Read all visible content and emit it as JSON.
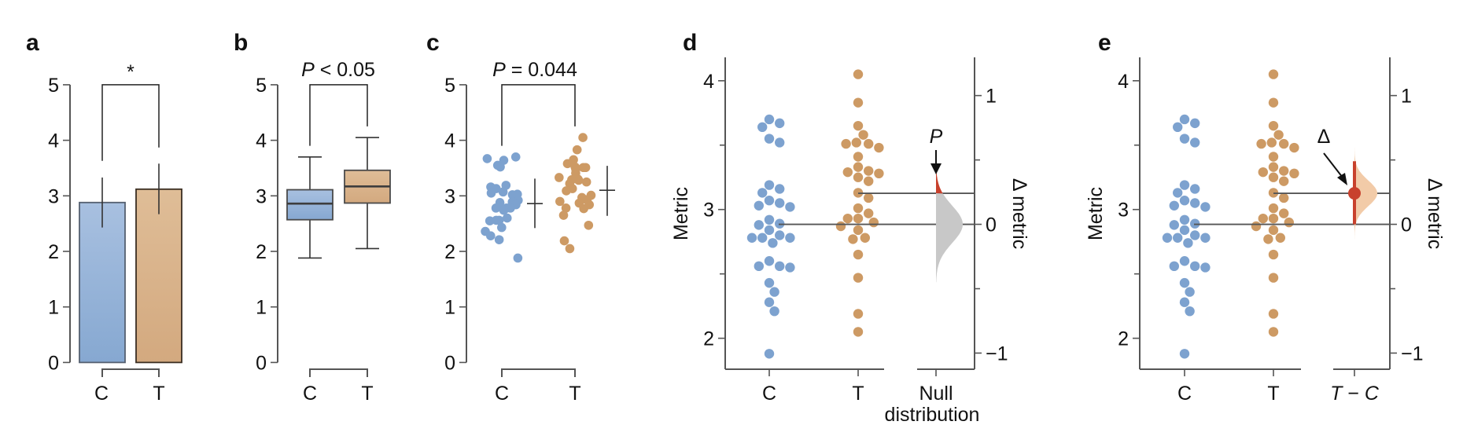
{
  "colors": {
    "control": "#7DA2CF",
    "treatment": "#CD9A64",
    "control_bar_top": "#A8C0E0",
    "control_bar_bottom": "#86A8D1",
    "treatment_bar_top": "#DFBD97",
    "treatment_bar_bottom": "#D3A97F",
    "delta": "#C8412D",
    "null_fill": "#C8C8C8",
    "bootstrap_fill": "#F2CBA8"
  },
  "chart_data": [
    {
      "panel": "a",
      "type": "bar",
      "categories": [
        "C",
        "T"
      ],
      "values": [
        2.88,
        3.12
      ],
      "error_low": [
        2.43,
        2.67
      ],
      "error_high": [
        3.33,
        3.58
      ],
      "ylim": [
        0,
        5
      ],
      "yticks": [
        "0",
        "1",
        "2",
        "3",
        "4",
        "5"
      ],
      "significance": {
        "label": "*",
        "left_leg_to": 3.63,
        "right_leg_to": 3.87
      }
    },
    {
      "panel": "b",
      "type": "box",
      "categories": [
        "C",
        "T"
      ],
      "boxes": [
        {
          "whisker_low": 1.88,
          "q1": 2.57,
          "median": 2.86,
          "q3": 3.11,
          "whisker_high": 3.7
        },
        {
          "whisker_low": 2.05,
          "q1": 2.87,
          "median": 3.17,
          "q3": 3.46,
          "whisker_high": 4.05
        }
      ],
      "ylim": [
        0,
        5
      ],
      "yticks": [
        "0",
        "1",
        "2",
        "3",
        "4",
        "5"
      ],
      "significance": {
        "label_italic": "P",
        "label_rest": " < 0.05",
        "left_leg_to": 3.9,
        "right_leg_to": 4.25
      }
    },
    {
      "panel": "c",
      "type": "scatter",
      "categories": [
        "C",
        "T"
      ],
      "summary": [
        {
          "mean": 2.86,
          "sd_low": 2.42,
          "sd_high": 3.31
        },
        {
          "mean": 3.1,
          "sd_low": 2.64,
          "sd_high": 3.54
        }
      ],
      "ylim": [
        0,
        5
      ],
      "yticks": [
        "0",
        "1",
        "2",
        "3",
        "4",
        "5"
      ],
      "significance": {
        "label_italic": "P",
        "label_rest": " = 0.044",
        "left_leg_to": 3.9,
        "right_leg_to": 4.25
      }
    },
    {
      "panel": "d",
      "type": "scatter",
      "categories": [
        "C",
        "T",
        "Null distribution"
      ],
      "ylabel": "Metric",
      "y2label": "Δ metric",
      "ylim": [
        1.75,
        4.18
      ],
      "yticks": [
        "2",
        "3",
        "4"
      ],
      "y2ticks": [
        "−1",
        "0",
        "1"
      ],
      "control_mean": 2.885,
      "treatment_mean": 3.126,
      "annotation": "P"
    },
    {
      "panel": "e",
      "type": "scatter",
      "categories": [
        "C",
        "T",
        "T − C"
      ],
      "ylabel": "Metric",
      "y2label": "Δ metric",
      "ylim": [
        1.75,
        4.18
      ],
      "yticks": [
        "2",
        "3",
        "4"
      ],
      "y2ticks": [
        "−1",
        "0",
        "1"
      ],
      "control_mean": 2.885,
      "treatment_mean": 3.126,
      "delta": 0.241,
      "delta_ci": [
        0.0,
        0.49
      ],
      "annotation": "Δ"
    }
  ],
  "samples": {
    "C": [
      3.7,
      3.67,
      3.64,
      3.55,
      3.52,
      3.19,
      3.16,
      3.13,
      3.07,
      3.03,
      3.02,
      3.05,
      2.92,
      2.89,
      2.88,
      2.84,
      2.8,
      2.78,
      2.78,
      2.78,
      2.74,
      2.6,
      2.56,
      2.55,
      2.56,
      2.43,
      2.36,
      2.28,
      2.21,
      1.88
    ],
    "T": [
      4.05,
      3.83,
      3.65,
      3.58,
      3.51,
      3.51,
      3.52,
      3.48,
      3.41,
      3.33,
      3.3,
      3.28,
      3.29,
      3.25,
      3.22,
      3.13,
      3.09,
      3.01,
      2.97,
      2.93,
      2.93,
      2.9,
      2.87,
      2.84,
      2.78,
      2.77,
      2.65,
      2.47,
      2.19,
      2.05
    ]
  },
  "labels": {
    "panel_a": "a",
    "panel_b": "b",
    "panel_c": "c",
    "panel_d": "d",
    "panel_e": "e",
    "cat_c": "C",
    "cat_t": "T",
    "null_line1": "Null",
    "null_line2": "distribution",
    "diff_t": "T",
    "diff_minus": " − ",
    "diff_c": "C"
  }
}
